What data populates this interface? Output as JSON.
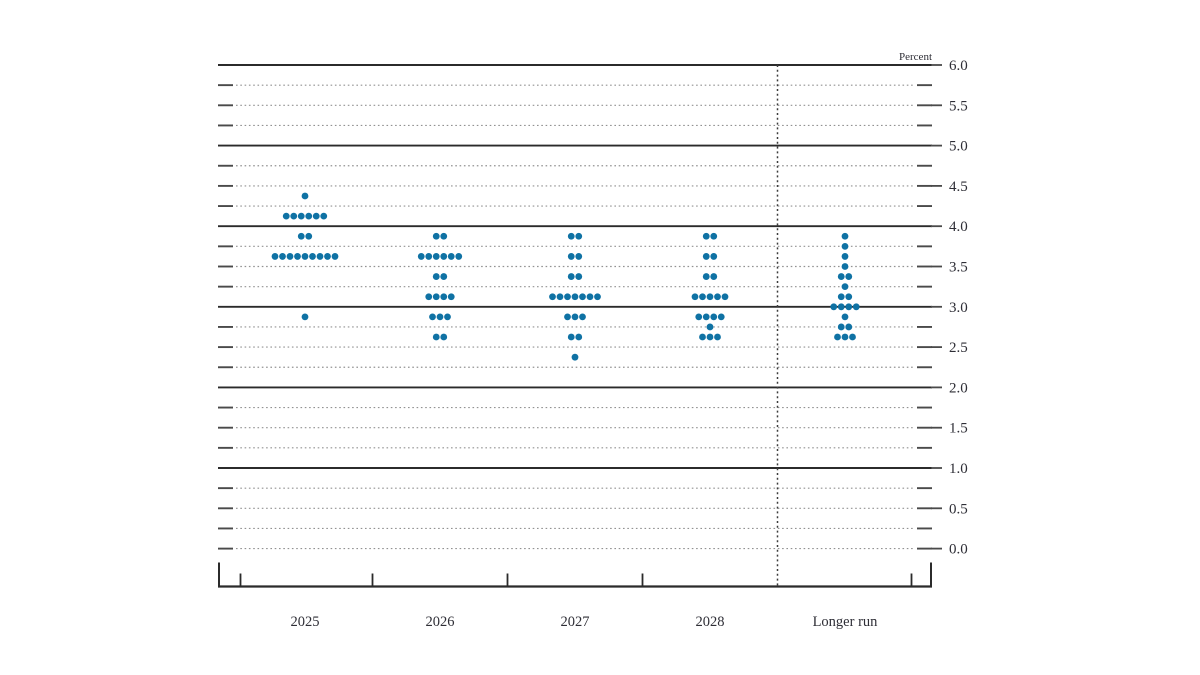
{
  "chart_data": {
    "type": "scatter",
    "subtype": "fomc-dot-plot",
    "unit_label": "Percent",
    "dot_color": "#0f72a4",
    "categories": [
      "2025",
      "2026",
      "2027",
      "2028",
      "Longer run"
    ],
    "y_axis": {
      "min": 0.0,
      "max": 6.0,
      "label_step": 0.5,
      "grid_step": 0.25,
      "tick_labels": [
        "6.0",
        "5.5",
        "5.0",
        "4.5",
        "4.0",
        "3.5",
        "3.0",
        "2.5",
        "2.0",
        "1.5",
        "1.0",
        "0.5",
        "0.0"
      ],
      "solid_lines_at": [
        1.0,
        2.0,
        3.0,
        4.0,
        5.0,
        6.0
      ],
      "grid_style": "dotted-quarters",
      "labels_side": "right"
    },
    "separator_before_category": "Longer run",
    "series": [
      {
        "category": "2025",
        "dots": [
          {
            "rate": 4.375,
            "count": 1
          },
          {
            "rate": 4.125,
            "count": 6
          },
          {
            "rate": 3.875,
            "count": 2
          },
          {
            "rate": 3.625,
            "count": 9
          },
          {
            "rate": 2.875,
            "count": 1
          }
        ]
      },
      {
        "category": "2026",
        "dots": [
          {
            "rate": 3.875,
            "count": 2
          },
          {
            "rate": 3.625,
            "count": 6
          },
          {
            "rate": 3.375,
            "count": 2
          },
          {
            "rate": 3.125,
            "count": 4
          },
          {
            "rate": 2.875,
            "count": 3
          },
          {
            "rate": 2.625,
            "count": 2
          }
        ]
      },
      {
        "category": "2027",
        "dots": [
          {
            "rate": 3.875,
            "count": 2
          },
          {
            "rate": 3.625,
            "count": 2
          },
          {
            "rate": 3.375,
            "count": 2
          },
          {
            "rate": 3.125,
            "count": 7
          },
          {
            "rate": 2.875,
            "count": 3
          },
          {
            "rate": 2.625,
            "count": 2
          },
          {
            "rate": 2.375,
            "count": 1
          }
        ]
      },
      {
        "category": "2028",
        "dots": [
          {
            "rate": 3.875,
            "count": 2
          },
          {
            "rate": 3.625,
            "count": 2
          },
          {
            "rate": 3.375,
            "count": 2
          },
          {
            "rate": 3.125,
            "count": 5
          },
          {
            "rate": 2.875,
            "count": 4
          },
          {
            "rate": 2.75,
            "count": 1
          },
          {
            "rate": 2.625,
            "count": 3
          }
        ]
      },
      {
        "category": "Longer run",
        "dots": [
          {
            "rate": 3.875,
            "count": 1
          },
          {
            "rate": 3.75,
            "count": 1
          },
          {
            "rate": 3.625,
            "count": 1
          },
          {
            "rate": 3.5,
            "count": 1
          },
          {
            "rate": 3.375,
            "count": 2
          },
          {
            "rate": 3.25,
            "count": 1
          },
          {
            "rate": 3.125,
            "count": 2
          },
          {
            "rate": 3.0,
            "count": 4
          },
          {
            "rate": 2.875,
            "count": 1
          },
          {
            "rate": 2.75,
            "count": 2
          },
          {
            "rate": 2.625,
            "count": 3
          }
        ]
      }
    ]
  }
}
